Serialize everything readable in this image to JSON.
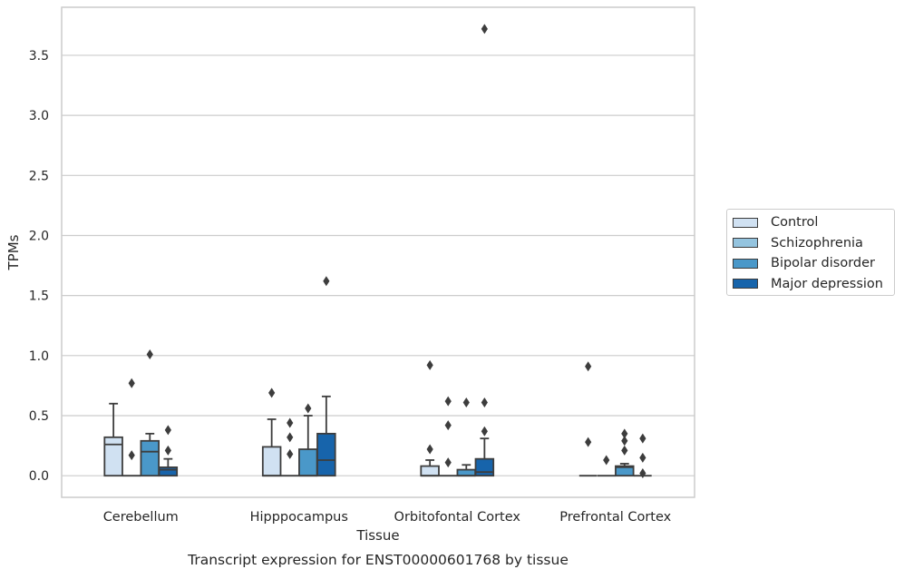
{
  "chart_data": {
    "type": "box",
    "title": "Transcript expression for ENST00000601768 by tissue",
    "xlabel": "Tissue",
    "ylabel": "TPMs",
    "ylim": [
      -0.18,
      3.9
    ],
    "yticks": [
      "0.0",
      "0.5",
      "1.0",
      "1.5",
      "2.0",
      "2.5",
      "3.0",
      "3.5"
    ],
    "categories": [
      "Cerebellum",
      "Hipppocampus",
      "Orbitofontal Cortex",
      "Prefrontal Cortex"
    ],
    "grid": true,
    "legend_position": "right",
    "series": [
      {
        "name": "Control",
        "color": "#d0e1f2",
        "boxes": [
          {
            "q1": 0.0,
            "median": 0.26,
            "q3": 0.32,
            "whisker_low": 0.0,
            "whisker_high": 0.6,
            "outliers": []
          },
          {
            "q1": 0.0,
            "median": 0.0,
            "q3": 0.24,
            "whisker_low": 0.0,
            "whisker_high": 0.47,
            "outliers": [
              0.69
            ]
          },
          {
            "q1": 0.0,
            "median": 0.0,
            "q3": 0.08,
            "whisker_low": 0.0,
            "whisker_high": 0.13,
            "outliers": [
              0.22,
              0.92
            ]
          },
          {
            "q1": 0.0,
            "median": 0.0,
            "q3": 0.0,
            "whisker_low": 0.0,
            "whisker_high": 0.0,
            "outliers": [
              0.28,
              0.91
            ]
          }
        ]
      },
      {
        "name": "Schizophrenia",
        "color": "#94c4df",
        "boxes": [
          {
            "q1": 0.0,
            "median": 0.0,
            "q3": 0.0,
            "whisker_low": 0.0,
            "whisker_high": 0.0,
            "outliers": [
              0.17,
              0.77
            ]
          },
          {
            "q1": 0.0,
            "median": 0.0,
            "q3": 0.0,
            "whisker_low": 0.0,
            "whisker_high": 0.0,
            "outliers": [
              0.18,
              0.32,
              0.44
            ]
          },
          {
            "q1": 0.0,
            "median": 0.0,
            "q3": 0.0,
            "whisker_low": 0.0,
            "whisker_high": 0.0,
            "outliers": [
              0.11,
              0.42,
              0.62
            ]
          },
          {
            "q1": 0.0,
            "median": 0.0,
            "q3": 0.0,
            "whisker_low": 0.0,
            "whisker_high": 0.0,
            "outliers": [
              0.13
            ]
          }
        ]
      },
      {
        "name": "Bipolar disorder",
        "color": "#4a98c9",
        "boxes": [
          {
            "q1": 0.0,
            "median": 0.2,
            "q3": 0.29,
            "whisker_low": 0.0,
            "whisker_high": 0.35,
            "outliers": [
              1.01
            ]
          },
          {
            "q1": 0.0,
            "median": 0.0,
            "q3": 0.22,
            "whisker_low": 0.0,
            "whisker_high": 0.5,
            "outliers": [
              0.56
            ]
          },
          {
            "q1": 0.0,
            "median": 0.0,
            "q3": 0.05,
            "whisker_low": 0.0,
            "whisker_high": 0.09,
            "outliers": [
              0.61
            ]
          },
          {
            "q1": 0.0,
            "median": 0.07,
            "q3": 0.08,
            "whisker_low": 0.0,
            "whisker_high": 0.1,
            "outliers": [
              0.21,
              0.29,
              0.35
            ]
          }
        ]
      },
      {
        "name": "Major depression",
        "color": "#1764ab",
        "boxes": [
          {
            "q1": 0.0,
            "median": 0.05,
            "q3": 0.07,
            "whisker_low": 0.0,
            "whisker_high": 0.14,
            "outliers": [
              0.21,
              0.38
            ]
          },
          {
            "q1": 0.0,
            "median": 0.13,
            "q3": 0.35,
            "whisker_low": 0.0,
            "whisker_high": 0.66,
            "outliers": [
              1.62
            ]
          },
          {
            "q1": 0.0,
            "median": 0.03,
            "q3": 0.14,
            "whisker_low": 0.0,
            "whisker_high": 0.31,
            "outliers": [
              0.37,
              0.61,
              3.72
            ]
          },
          {
            "q1": 0.0,
            "median": 0.0,
            "q3": 0.0,
            "whisker_low": 0.0,
            "whisker_high": 0.0,
            "outliers": [
              0.02,
              0.15,
              0.31
            ]
          }
        ]
      }
    ]
  }
}
